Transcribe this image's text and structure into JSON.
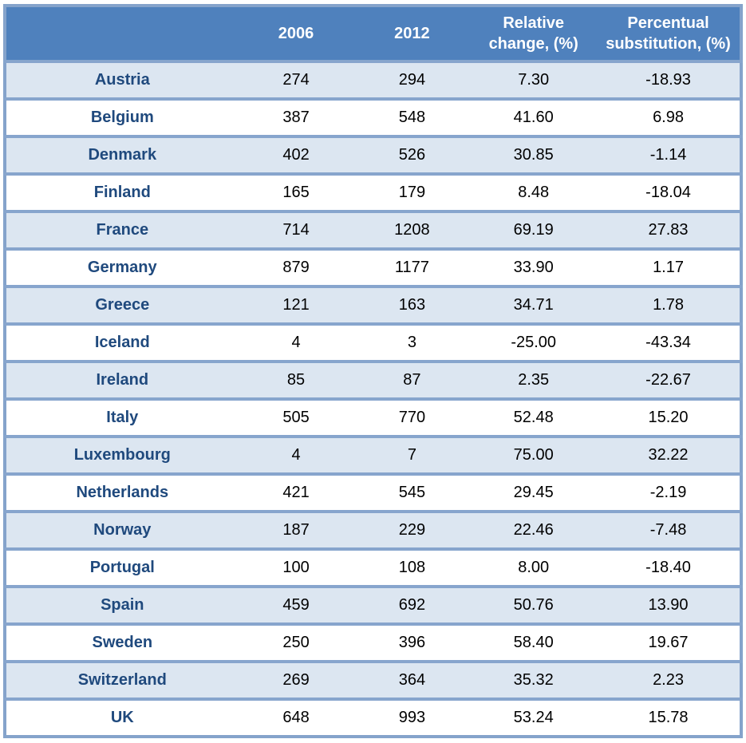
{
  "chart_data": {
    "type": "table",
    "title": "",
    "columns": [
      "",
      "2006",
      "2012",
      "Relative change, (%)",
      "Percentual substitution, (%)"
    ],
    "rows": [
      [
        "Austria",
        "274",
        "294",
        "7.30",
        "-18.93"
      ],
      [
        "Belgium",
        "387",
        "548",
        "41.60",
        "6.98"
      ],
      [
        "Denmark",
        "402",
        "526",
        "30.85",
        "-1.14"
      ],
      [
        "Finland",
        "165",
        "179",
        "8.48",
        "-18.04"
      ],
      [
        "France",
        "714",
        "1208",
        "69.19",
        "27.83"
      ],
      [
        "Germany",
        "879",
        "1177",
        "33.90",
        "1.17"
      ],
      [
        "Greece",
        "121",
        "163",
        "34.71",
        "1.78"
      ],
      [
        "Iceland",
        "4",
        "3",
        "-25.00",
        "-43.34"
      ],
      [
        "Ireland",
        "85",
        "87",
        "2.35",
        "-22.67"
      ],
      [
        "Italy",
        "505",
        "770",
        "52.48",
        "15.20"
      ],
      [
        "Luxembourg",
        "4",
        "7",
        "75.00",
        "32.22"
      ],
      [
        "Netherlands",
        "421",
        "545",
        "29.45",
        "-2.19"
      ],
      [
        "Norway",
        "187",
        "229",
        "22.46",
        "-7.48"
      ],
      [
        "Portugal",
        "100",
        "108",
        "8.00",
        "-18.40"
      ],
      [
        "Spain",
        "459",
        "692",
        "50.76",
        "13.90"
      ],
      [
        "Sweden",
        "250",
        "396",
        "58.40",
        "19.67"
      ],
      [
        "Switzerland",
        "269",
        "364",
        "35.32",
        "2.23"
      ],
      [
        "UK",
        "648",
        "993",
        "53.24",
        "15.78"
      ]
    ],
    "layout_hints": {
      "header_position": "top",
      "alternating_rows": true,
      "first_column_style": "bold-navy-country-names"
    }
  },
  "colors": {
    "header_bg": "#4F81BD",
    "header_text": "#FFFFFF",
    "row_alt_bg": "#DCE6F1",
    "row_bg": "#FFFFFF",
    "grid_border": "#87A5CD",
    "outer_border": "#85A3CB",
    "country_text": "#1F497D",
    "number_text": "#000000",
    "page_bg": "#FFFFFF"
  }
}
